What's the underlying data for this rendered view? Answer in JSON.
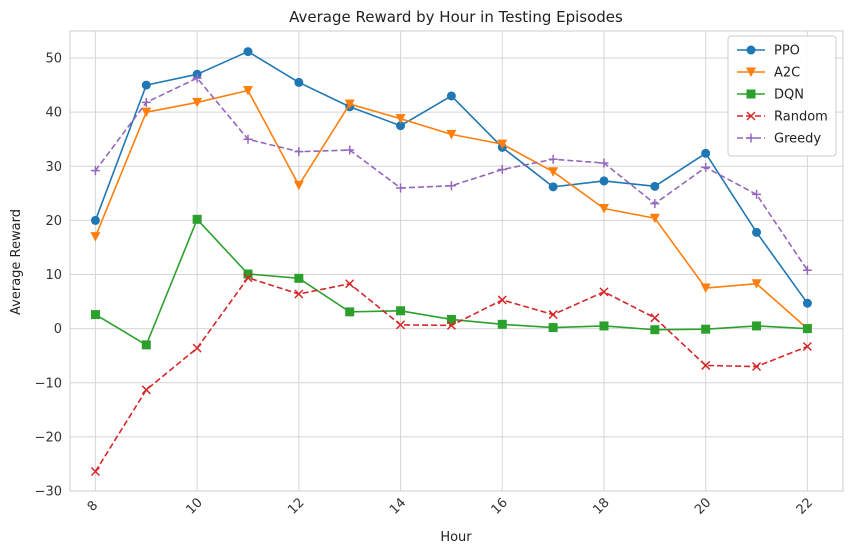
{
  "chart_data": {
    "type": "line",
    "title": "Average Reward by Hour in Testing Episodes",
    "xlabel": "Hour",
    "ylabel": "Average Reward",
    "xlim": [
      7.5,
      22.7
    ],
    "ylim": [
      -30,
      55
    ],
    "x_ticks": [
      8,
      10,
      12,
      14,
      16,
      18,
      20,
      22
    ],
    "y_ticks": [
      -30,
      -20,
      -10,
      0,
      10,
      20,
      30,
      40,
      50
    ],
    "x_tick_labels": [
      "8",
      "10",
      "12",
      "14",
      "16",
      "18",
      "20",
      "22"
    ],
    "y_tick_labels": [
      "−30",
      "−20",
      "−10",
      "0",
      "10",
      "20",
      "30",
      "40",
      "50"
    ],
    "grid": true,
    "legend_position": "top-right",
    "x": [
      8,
      9,
      10,
      11,
      12,
      13,
      14,
      15,
      16,
      17,
      18,
      19,
      20,
      21,
      22
    ],
    "series": [
      {
        "name": "PPO",
        "color": "#1f77b4",
        "marker": "circle",
        "dash": "solid",
        "values": [
          20.0,
          45.0,
          47.0,
          51.2,
          45.5,
          41.0,
          37.5,
          43.0,
          33.5,
          26.2,
          27.3,
          26.3,
          32.4,
          17.8,
          4.7
        ]
      },
      {
        "name": "A2C",
        "color": "#ff7f0e",
        "marker": "triangle-down",
        "dash": "solid",
        "values": [
          17.0,
          40.0,
          41.8,
          44.0,
          26.5,
          41.5,
          38.8,
          35.9,
          34.1,
          29.0,
          22.2,
          20.4,
          7.5,
          8.3,
          0.0
        ]
      },
      {
        "name": "DQN",
        "color": "#2ca02c",
        "marker": "square",
        "dash": "solid",
        "values": [
          2.6,
          -3.0,
          20.2,
          10.1,
          9.3,
          3.1,
          3.3,
          1.7,
          0.8,
          0.2,
          0.5,
          -0.2,
          -0.1,
          0.5,
          0.0
        ]
      },
      {
        "name": "Random",
        "color": "#d62728",
        "marker": "x",
        "dash": "dashed",
        "values": [
          -26.4,
          -11.3,
          -3.6,
          9.4,
          6.4,
          8.3,
          0.7,
          0.6,
          5.3,
          2.6,
          6.8,
          2.0,
          -6.8,
          -7.0,
          -3.3
        ]
      },
      {
        "name": "Greedy",
        "color": "#9467bd",
        "marker": "plus",
        "dash": "dashed",
        "values": [
          29.2,
          41.8,
          46.3,
          35.0,
          32.7,
          33.0,
          26.0,
          26.4,
          29.4,
          31.3,
          30.6,
          23.1,
          29.8,
          24.8,
          10.8
        ]
      }
    ]
  }
}
